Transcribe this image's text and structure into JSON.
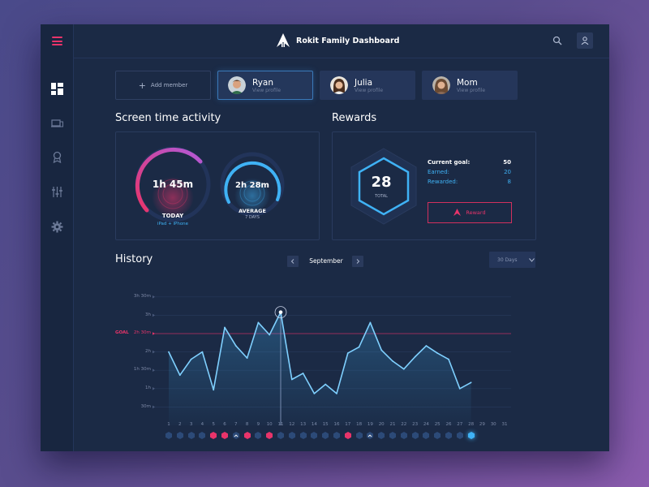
{
  "app": {
    "title": "Rokit Family Dashboard"
  },
  "members": {
    "add_label": "Add member",
    "profiles": [
      {
        "name": "Ryan",
        "sub": "View profile",
        "active": true
      },
      {
        "name": "Julia",
        "sub": "View profile",
        "active": false
      },
      {
        "name": "Mom",
        "sub": "View profile",
        "active": false
      }
    ]
  },
  "screen_time": {
    "title": "Screen time activity",
    "today": {
      "value": "1h 45m",
      "label": "TODAY",
      "devices": "iPad + iPhone"
    },
    "average": {
      "value": "2h 28m",
      "label": "AVERAGE",
      "period": "7 DAYS"
    }
  },
  "rewards": {
    "title": "Rewards",
    "total": "28",
    "total_label": "TOTAL",
    "current_goal_label": "Current goal:",
    "current_goal_value": "50",
    "earned_label": "Earned:",
    "earned_value": "20",
    "rewarded_label": "Rewarded:",
    "rewarded_value": "8",
    "button_label": "Reward"
  },
  "history": {
    "title": "History",
    "month": "September",
    "range": "30 Days",
    "goal_label": "GOAL",
    "goal_value": "2h 30m"
  },
  "colors": {
    "accent_pink": "#e8346a",
    "accent_blue": "#3fb2f5",
    "background": "#1b2a45"
  },
  "chart_data": {
    "type": "line",
    "x": [
      1,
      2,
      3,
      4,
      5,
      6,
      7,
      8,
      9,
      10,
      11,
      12,
      13,
      14,
      15,
      16,
      17,
      18,
      19,
      20,
      21,
      22,
      23,
      24,
      25,
      26,
      27,
      28
    ],
    "x_ticks": [
      "1",
      "2",
      "3",
      "4",
      "5",
      "6",
      "7",
      "8",
      "9",
      "10",
      "11",
      "12",
      "13",
      "14",
      "15",
      "16",
      "17",
      "18",
      "19",
      "20",
      "21",
      "22",
      "23",
      "24",
      "25",
      "26",
      "27",
      "28",
      "29",
      "30",
      "31"
    ],
    "y_ticks": [
      "30m",
      "1h",
      "1h 30m",
      "2h",
      "2h 30m",
      "3h",
      "3h 30m"
    ],
    "ylim": [
      0,
      210
    ],
    "goal": 150,
    "series": [
      {
        "values": [
          120,
          82,
          108,
          120,
          58,
          160,
          130,
          110,
          168,
          148,
          185,
          75,
          85,
          52,
          67,
          52,
          118,
          128,
          168,
          123,
          105,
          92,
          112,
          130,
          118,
          108,
          60,
          70
        ]
      }
    ],
    "highlight_day": 11
  }
}
